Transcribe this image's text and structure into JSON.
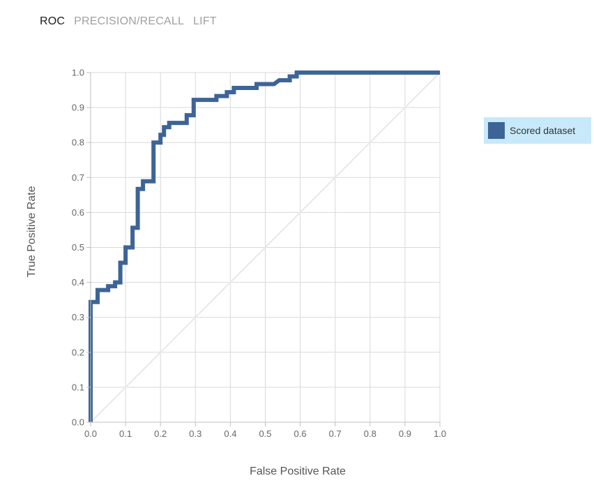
{
  "tabs": [
    {
      "label": "ROC",
      "active": true
    },
    {
      "label": "PRECISION/RECALL",
      "active": false
    },
    {
      "label": "LIFT",
      "active": false
    }
  ],
  "legend": {
    "label": "Scored dataset",
    "color": "#3d6496"
  },
  "colors": {
    "curve": "#3d6496",
    "grid": "#d9d9d9",
    "diagonal": "#e8e8e8",
    "tick_text": "#666666"
  },
  "chart_data": {
    "type": "line",
    "xlabel": "False Positive Rate",
    "ylabel": "True Positive Rate",
    "xlim": [
      0,
      1
    ],
    "ylim": [
      0,
      1
    ],
    "x_ticks": [
      "0.0",
      "0.1",
      "0.2",
      "0.3",
      "0.4",
      "0.5",
      "0.6",
      "0.7",
      "0.8",
      "0.9",
      "1.0"
    ],
    "y_ticks": [
      "0.0",
      "0.1",
      "0.2",
      "0.3",
      "0.4",
      "0.5",
      "0.6",
      "0.7",
      "0.8",
      "0.9",
      "1.0"
    ],
    "grid": true,
    "legend_position": "right",
    "diagonal_reference": true,
    "series": [
      {
        "name": "Scored dataset",
        "color": "#3d6496",
        "points": [
          [
            0,
            0
          ],
          [
            0,
            0.344
          ],
          [
            0.02,
            0.344
          ],
          [
            0.02,
            0.378
          ],
          [
            0.05,
            0.378
          ],
          [
            0.05,
            0.389
          ],
          [
            0.07,
            0.389
          ],
          [
            0.07,
            0.4
          ],
          [
            0.085,
            0.4
          ],
          [
            0.085,
            0.411
          ],
          [
            0.085,
            0.456
          ],
          [
            0.1,
            0.456
          ],
          [
            0.1,
            0.5
          ],
          [
            0.12,
            0.5
          ],
          [
            0.12,
            0.556
          ],
          [
            0.135,
            0.556
          ],
          [
            0.135,
            0.667
          ],
          [
            0.15,
            0.667
          ],
          [
            0.15,
            0.689
          ],
          [
            0.18,
            0.689
          ],
          [
            0.18,
            0.8
          ],
          [
            0.2,
            0.8
          ],
          [
            0.2,
            0.822
          ],
          [
            0.21,
            0.822
          ],
          [
            0.21,
            0.844
          ],
          [
            0.225,
            0.844
          ],
          [
            0.225,
            0.856
          ],
          [
            0.275,
            0.856
          ],
          [
            0.275,
            0.878
          ],
          [
            0.295,
            0.878
          ],
          [
            0.295,
            0.922
          ],
          [
            0.36,
            0.922
          ],
          [
            0.36,
            0.933
          ],
          [
            0.39,
            0.933
          ],
          [
            0.39,
            0.944
          ],
          [
            0.41,
            0.944
          ],
          [
            0.41,
            0.956
          ],
          [
            0.475,
            0.956
          ],
          [
            0.475,
            0.967
          ],
          [
            0.525,
            0.967
          ],
          [
            0.54,
            0.978
          ],
          [
            0.57,
            0.978
          ],
          [
            0.57,
            0.989
          ],
          [
            0.59,
            0.989
          ],
          [
            0.59,
            1.0
          ],
          [
            1.0,
            1.0
          ]
        ]
      }
    ]
  }
}
